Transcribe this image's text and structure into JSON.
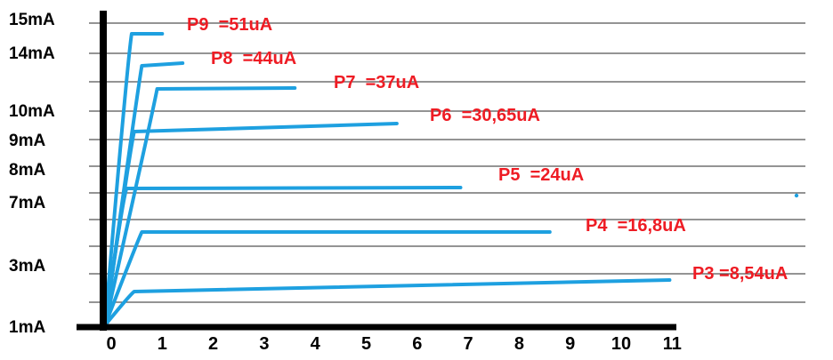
{
  "chart_data": {
    "type": "line",
    "title": "",
    "xlabel": "",
    "ylabel": "",
    "grid": true,
    "legend": "none",
    "xlim": [
      0,
      11
    ],
    "y_tick_labels": [
      "15mA",
      "14mA",
      "10mA",
      "9mA",
      "8mA",
      "7mA",
      "3mA",
      "1mA"
    ],
    "x_tick_labels": [
      "0",
      "1",
      "2",
      "3",
      "4",
      "5",
      "6",
      "7",
      "8",
      "9",
      "10",
      "11"
    ],
    "series": [
      {
        "name": "P9 =51uA",
        "label": "P9  =51uA",
        "x_sat": 0.4,
        "x_end": 1.0
      },
      {
        "name": "P8 =44uA",
        "label": "P8  =44uA",
        "x_sat": 0.6,
        "x_end": 1.4
      },
      {
        "name": "P7 =37uA",
        "label": "P7  =37uA",
        "x_sat": 0.9,
        "x_end": 3.6
      },
      {
        "name": "P6 =30,65uA",
        "label": "P6  =30,65uA",
        "x_sat": 0.45,
        "x_end": 5.6
      },
      {
        "name": "P5 =24uA",
        "label": "P5  =24uA",
        "x_sat": 0.3,
        "x_end": 6.85
      },
      {
        "name": "P4 =16,8uA",
        "label": "P4  =16,8uA",
        "x_sat": 0.6,
        "x_end": 8.6
      },
      {
        "name": "P3 =8,54uA",
        "label": "P3 =8,54uA",
        "x_sat": 0.45,
        "x_end": 10.95
      }
    ],
    "colors": {
      "line": "#1ea0e0",
      "label": "#ee1c24",
      "axis": "#000000",
      "grid": "#555555"
    }
  }
}
